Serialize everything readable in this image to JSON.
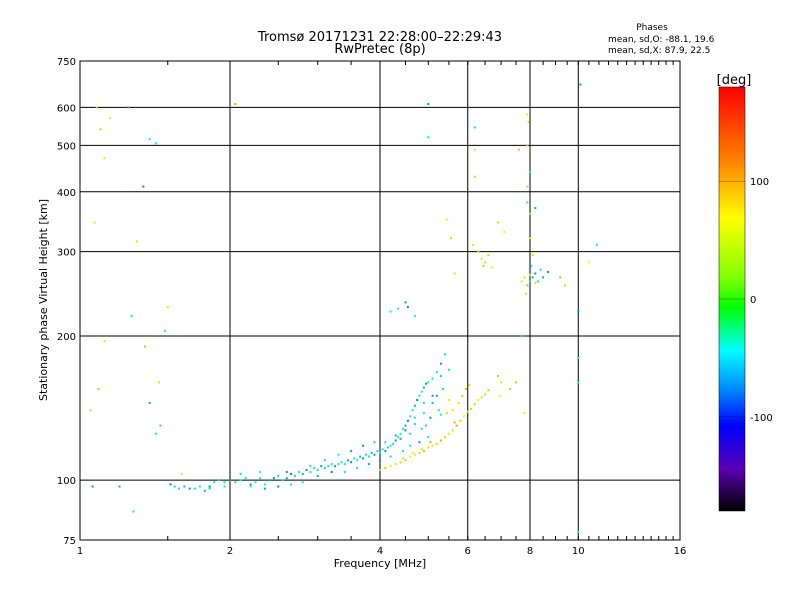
{
  "chart_data": {
    "type": "scatter",
    "title": "Tromsø 20171231 22:28:00–22:29:43",
    "subtitle": "RwPretec (8p)",
    "xlabel": "Frequency [MHz]",
    "ylabel": "Stationary phase Virtual Height [km]",
    "x_scale": "log",
    "y_scale": "log",
    "xlim": [
      1,
      16
    ],
    "ylim": [
      75,
      750
    ],
    "x_ticks": [
      1,
      2,
      4,
      6,
      8,
      10,
      16
    ],
    "y_ticks": [
      75,
      100,
      200,
      300,
      400,
      500,
      600,
      750
    ],
    "grid": true,
    "stats": {
      "heading": "Phases",
      "line_o": "mean, sd,O: -88.1, 19.6",
      "line_x": "mean, sd,X:  87.9, 22.5"
    },
    "colorbar": {
      "label": "[deg]",
      "range": [
        -180,
        180
      ],
      "ticks": [
        100,
        0,
        -100
      ]
    },
    "colors": {
      "grid": "#000000",
      "background": "#ffffff"
    },
    "series": [
      {
        "name": "O",
        "color_value": -88.1,
        "points": [
          [
            1.52,
            98
          ],
          [
            1.55,
            97
          ],
          [
            1.58,
            96
          ],
          [
            1.62,
            97
          ],
          [
            1.66,
            96
          ],
          [
            1.7,
            96
          ],
          [
            1.74,
            97
          ],
          [
            1.78,
            95
          ],
          [
            1.82,
            97
          ],
          [
            1.86,
            99
          ],
          [
            1.9,
            100
          ],
          [
            1.95,
            99
          ],
          [
            2.0,
            100
          ],
          [
            2.05,
            99
          ],
          [
            2.1,
            100
          ],
          [
            2.15,
            101
          ],
          [
            2.2,
            98
          ],
          [
            2.25,
            99
          ],
          [
            2.3,
            101
          ],
          [
            2.35,
            98
          ],
          [
            2.4,
            100
          ],
          [
            2.45,
            101
          ],
          [
            2.5,
            102
          ],
          [
            2.55,
            100
          ],
          [
            2.6,
            101
          ],
          [
            2.65,
            103
          ],
          [
            2.7,
            102
          ],
          [
            2.75,
            104
          ],
          [
            2.8,
            103
          ],
          [
            2.85,
            105
          ],
          [
            2.9,
            104
          ],
          [
            2.95,
            106
          ],
          [
            3.0,
            105
          ],
          [
            3.05,
            107
          ],
          [
            3.1,
            106
          ],
          [
            3.15,
            107
          ],
          [
            3.2,
            108
          ],
          [
            3.25,
            107
          ],
          [
            3.3,
            108
          ],
          [
            3.35,
            109
          ],
          [
            3.4,
            108
          ],
          [
            3.45,
            110
          ],
          [
            3.5,
            109
          ],
          [
            3.55,
            111
          ],
          [
            3.6,
            110
          ],
          [
            3.65,
            112
          ],
          [
            3.7,
            111
          ],
          [
            3.75,
            113
          ],
          [
            3.8,
            112
          ],
          [
            3.85,
            114
          ],
          [
            3.9,
            113
          ],
          [
            3.95,
            115
          ],
          [
            4.0,
            114
          ],
          [
            4.05,
            116
          ],
          [
            4.1,
            115
          ],
          [
            4.15,
            117
          ],
          [
            4.2,
            118
          ],
          [
            4.25,
            119
          ],
          [
            4.3,
            121
          ],
          [
            4.35,
            123
          ],
          [
            4.4,
            125
          ],
          [
            4.45,
            128
          ],
          [
            4.5,
            130
          ],
          [
            4.55,
            133
          ],
          [
            4.6,
            136
          ],
          [
            4.65,
            140
          ],
          [
            4.7,
            143
          ],
          [
            4.75,
            147
          ],
          [
            4.8,
            150
          ],
          [
            4.85,
            153
          ],
          [
            4.9,
            156
          ],
          [
            4.95,
            159
          ],
          [
            5.0,
            160
          ],
          [
            5.1,
            163
          ],
          [
            5.2,
            168
          ],
          [
            5.3,
            175
          ],
          [
            5.4,
            183
          ],
          [
            2.1,
            103
          ],
          [
            2.3,
            104
          ],
          [
            2.6,
            104
          ],
          [
            2.9,
            107
          ],
          [
            3.1,
            110
          ],
          [
            3.3,
            113
          ],
          [
            3.5,
            115
          ],
          [
            3.7,
            118
          ],
          [
            3.9,
            120
          ],
          [
            4.1,
            120
          ],
          [
            4.3,
            124
          ],
          [
            4.5,
            127
          ],
          [
            4.7,
            131
          ],
          [
            4.9,
            138
          ],
          [
            5.1,
            145
          ],
          [
            5.2,
            150
          ],
          [
            5.25,
            140
          ],
          [
            5.3,
            137
          ],
          [
            5.35,
            155
          ],
          [
            5.05,
            135
          ],
          [
            4.95,
            130
          ],
          [
            4.85,
            128
          ],
          [
            4.6,
            125
          ],
          [
            4.4,
            122
          ],
          [
            1.82,
            96
          ],
          [
            1.95,
            97
          ],
          [
            2.2,
            97
          ],
          [
            2.35,
            96
          ],
          [
            2.5,
            97
          ],
          [
            2.65,
            98
          ],
          [
            2.8,
            99
          ],
          [
            3.0,
            102
          ],
          [
            3.2,
            104
          ],
          [
            3.4,
            104
          ],
          [
            3.6,
            106
          ],
          [
            3.8,
            108
          ],
          [
            4.0,
            110
          ],
          [
            4.2,
            112
          ],
          [
            4.45,
            115
          ],
          [
            4.6,
            118
          ],
          [
            4.8,
            120
          ],
          [
            5.0,
            123
          ],
          [
            4.7,
            135
          ],
          [
            4.9,
            145
          ],
          [
            5.1,
            150
          ],
          [
            5.3,
            165
          ],
          [
            5.5,
            170
          ],
          [
            4.2,
            225
          ],
          [
            4.5,
            235
          ],
          [
            4.55,
            230
          ],
          [
            4.35,
            228
          ],
          [
            4.7,
            220
          ],
          [
            1.2,
            97
          ],
          [
            1.06,
            97
          ],
          [
            1.28,
            86
          ],
          [
            1.27,
            220
          ],
          [
            1.25,
            600
          ],
          [
            1.34,
            410
          ],
          [
            1.38,
            515
          ],
          [
            1.42,
            505
          ],
          [
            1.48,
            205
          ],
          [
            1.38,
            145
          ],
          [
            1.45,
            130
          ],
          [
            1.42,
            125
          ],
          [
            5.0,
            520
          ],
          [
            5.0,
            610
          ],
          [
            6.2,
            545
          ],
          [
            8.0,
            440
          ],
          [
            8.05,
            280
          ],
          [
            8.1,
            265
          ],
          [
            8.2,
            270
          ],
          [
            8.3,
            260
          ],
          [
            8.4,
            275
          ],
          [
            8.5,
            265
          ],
          [
            8.7,
            272
          ],
          [
            8.0,
            260
          ],
          [
            7.9,
            380
          ],
          [
            8.2,
            370
          ],
          [
            10.0,
            225
          ],
          [
            10.0,
            180
          ],
          [
            10.0,
            160
          ],
          [
            10.0,
            78
          ],
          [
            10.1,
            670
          ],
          [
            10.9,
            310
          ],
          [
            7.7,
            200
          ]
        ]
      },
      {
        "name": "X",
        "color_value": 87.9,
        "points": [
          [
            4.0,
            105
          ],
          [
            4.1,
            106
          ],
          [
            4.2,
            107
          ],
          [
            4.3,
            108
          ],
          [
            4.4,
            109
          ],
          [
            4.5,
            110
          ],
          [
            4.6,
            112
          ],
          [
            4.7,
            113
          ],
          [
            4.8,
            114
          ],
          [
            4.9,
            115
          ],
          [
            5.0,
            117
          ],
          [
            5.1,
            118
          ],
          [
            5.2,
            119
          ],
          [
            5.3,
            121
          ],
          [
            5.4,
            123
          ],
          [
            5.5,
            125
          ],
          [
            5.6,
            127
          ],
          [
            5.7,
            130
          ],
          [
            5.8,
            133
          ],
          [
            5.9,
            136
          ],
          [
            6.0,
            139
          ],
          [
            6.1,
            141
          ],
          [
            6.2,
            144
          ],
          [
            6.3,
            147
          ],
          [
            6.4,
            149
          ],
          [
            6.5,
            151
          ],
          [
            6.6,
            154
          ],
          [
            5.6,
            140
          ],
          [
            5.75,
            145
          ],
          [
            5.85,
            150
          ],
          [
            5.95,
            155
          ],
          [
            6.05,
            158
          ],
          [
            5.5,
            147
          ],
          [
            5.45,
            138
          ],
          [
            5.65,
            132
          ],
          [
            4.45,
            111
          ],
          [
            4.65,
            114
          ],
          [
            4.85,
            116
          ],
          [
            5.05,
            120
          ],
          [
            6.3,
            300
          ],
          [
            6.4,
            290
          ],
          [
            6.5,
            285
          ],
          [
            6.45,
            280
          ],
          [
            6.6,
            295
          ],
          [
            6.7,
            278
          ],
          [
            6.15,
            310
          ],
          [
            1.08,
            600
          ],
          [
            1.1,
            540
          ],
          [
            1.12,
            470
          ],
          [
            1.07,
            345
          ],
          [
            1.05,
            140
          ],
          [
            1.09,
            155
          ],
          [
            1.12,
            195
          ],
          [
            1.15,
            570
          ],
          [
            1.3,
            315
          ],
          [
            1.35,
            190
          ],
          [
            1.5,
            230
          ],
          [
            1.6,
            103
          ],
          [
            1.44,
            160
          ],
          [
            2.05,
            610
          ],
          [
            5.55,
            320
          ],
          [
            5.45,
            350
          ],
          [
            5.65,
            270
          ],
          [
            6.2,
            430
          ],
          [
            6.9,
            165
          ],
          [
            6.95,
            150
          ],
          [
            7.0,
            160
          ],
          [
            7.3,
            155
          ],
          [
            7.5,
            160
          ],
          [
            7.8,
            138
          ],
          [
            7.9,
            580
          ],
          [
            7.95,
            560
          ],
          [
            7.9,
            500
          ],
          [
            8.1,
            295
          ],
          [
            7.7,
            260
          ],
          [
            7.8,
            265
          ],
          [
            7.9,
            255
          ],
          [
            8.0,
            268
          ],
          [
            8.2,
            258
          ],
          [
            7.85,
            245
          ],
          [
            9.2,
            265
          ],
          [
            9.4,
            255
          ],
          [
            10.5,
            285
          ],
          [
            6.2,
            490
          ],
          [
            7.9,
            410
          ],
          [
            6.9,
            345
          ],
          [
            7.1,
            330
          ],
          [
            8.0,
            320
          ],
          [
            8.0,
            360
          ],
          [
            7.6,
            490
          ]
        ]
      }
    ]
  }
}
